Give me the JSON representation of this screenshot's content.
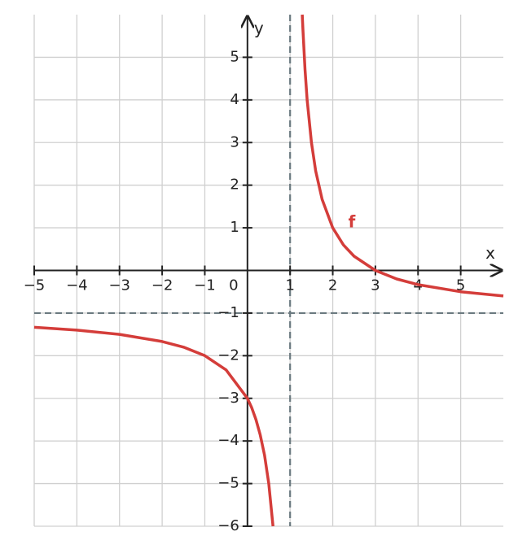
{
  "chart_data": {
    "type": "line",
    "x_label": "x",
    "y_label": "y",
    "x": [
      -5,
      -4,
      -3,
      -2,
      -1.5,
      -1,
      -0.5,
      0,
      0.1,
      0.2,
      0.3,
      0.4,
      0.5,
      0.6,
      1,
      1.2857,
      1.3,
      1.35,
      1.4,
      1.5,
      1.6,
      1.75,
      2,
      2.25,
      2.5,
      3,
      3.5,
      4,
      5,
      6
    ],
    "series": [
      {
        "name": "f",
        "color": "#d43d3a",
        "values": [
          -1.333,
          -1.4,
          -1.5,
          -1.667,
          -1.8,
          -2,
          -2.333,
          -3,
          -3.222,
          -3.5,
          -3.857,
          -4.333,
          -5,
          -6,
          null,
          6,
          5.667,
          4.714,
          4,
          3,
          2.333,
          1.667,
          1,
          0.6,
          0.333,
          0,
          -0.2,
          -0.333,
          -0.5,
          -0.6
        ]
      }
    ],
    "asymptotes": {
      "x": 1,
      "y": -1,
      "color": "#6b7a80"
    },
    "xlim": [
      -5,
      6
    ],
    "ylim": [
      -6,
      6
    ],
    "xticks": [
      {
        "value": -5,
        "label": "−5"
      },
      {
        "value": -4,
        "label": "−4"
      },
      {
        "value": -3,
        "label": "−3"
      },
      {
        "value": -2,
        "label": "−2"
      },
      {
        "value": -1,
        "label": "−1"
      },
      0,
      1,
      2,
      3,
      4,
      5
    ],
    "yticks": [
      {
        "value": -6,
        "label": "−6"
      },
      {
        "value": -5,
        "label": "−5"
      },
      {
        "value": -4,
        "label": "−4"
      },
      {
        "value": -3,
        "label": "−3"
      },
      {
        "value": -2,
        "label": "−2"
      },
      {
        "value": -1,
        "label": "−1"
      },
      1,
      2,
      3,
      4,
      5
    ],
    "grid": true
  }
}
